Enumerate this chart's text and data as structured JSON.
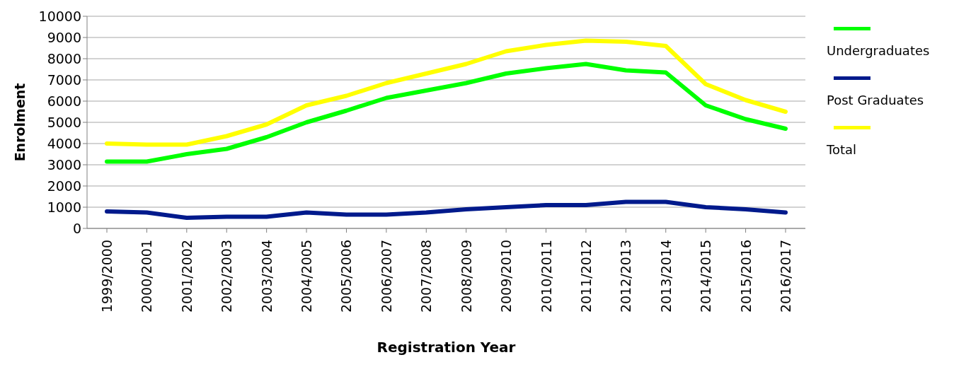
{
  "chart_data": {
    "type": "line",
    "xlabel": "Registration Year",
    "ylabel": "Enrolment",
    "categories": [
      "1999/2000",
      "2000/2001",
      "2001/2002",
      "2002/2003",
      "2003/2004",
      "2004/2005",
      "2005/2006",
      "2006/2007",
      "2007/2008",
      "2008/2009",
      "2009/2010",
      "2010/2011",
      "2011/2012",
      "2012/2013",
      "2013/2014",
      "2014/2015",
      "2015/2016",
      "2016/2017"
    ],
    "series": [
      {
        "name": "Undergraduates",
        "color": "#00ff00",
        "values": [
          3150,
          3150,
          3500,
          3750,
          4300,
          5000,
          5550,
          6150,
          6500,
          6850,
          7300,
          7550,
          7750,
          7450,
          7350,
          5800,
          5150,
          4700
        ]
      },
      {
        "name": "Post Graduates",
        "color": "#001a8c",
        "values": [
          800,
          750,
          500,
          550,
          550,
          750,
          650,
          650,
          750,
          900,
          1000,
          1100,
          1100,
          1250,
          1250,
          1000,
          900,
          750
        ]
      },
      {
        "name": "Total",
        "color": "#ffff00",
        "values": [
          4000,
          3950,
          3950,
          4350,
          4900,
          5800,
          6250,
          6850,
          7300,
          7750,
          8350,
          8650,
          8850,
          8800,
          8600,
          6800,
          6050,
          5500
        ]
      }
    ],
    "ylim": [
      0,
      10000
    ],
    "yticks": [
      0,
      1000,
      2000,
      3000,
      4000,
      5000,
      6000,
      7000,
      8000,
      9000,
      10000
    ],
    "grid": "y",
    "legend": "right",
    "marker": "none",
    "line_style": "solid"
  }
}
